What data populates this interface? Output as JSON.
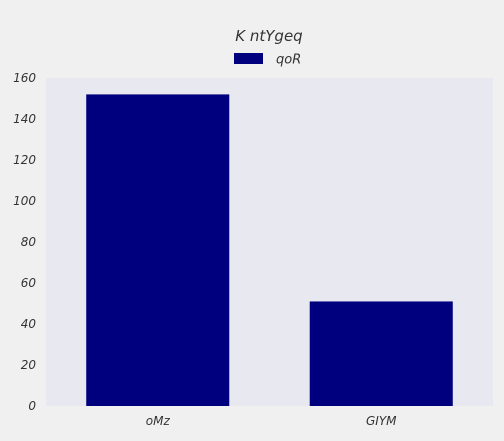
{
  "chart_data": {
    "type": "bar",
    "title": "K ntYgeq",
    "xlabel": "",
    "ylabel": "",
    "categories": [
      "oMz",
      "GIYM"
    ],
    "series": [
      {
        "name": "qoR",
        "values": [
          152,
          51
        ]
      }
    ],
    "ylim": [
      0,
      160
    ],
    "yticks": [
      0,
      20,
      40,
      60,
      80,
      100,
      120,
      140,
      160
    ],
    "grid": false,
    "legend_position": "top-center"
  },
  "colors": {
    "figure_background": "#f0f0f0",
    "plot_background": "#e8e8f0",
    "series": [
      "#00007f"
    ]
  }
}
